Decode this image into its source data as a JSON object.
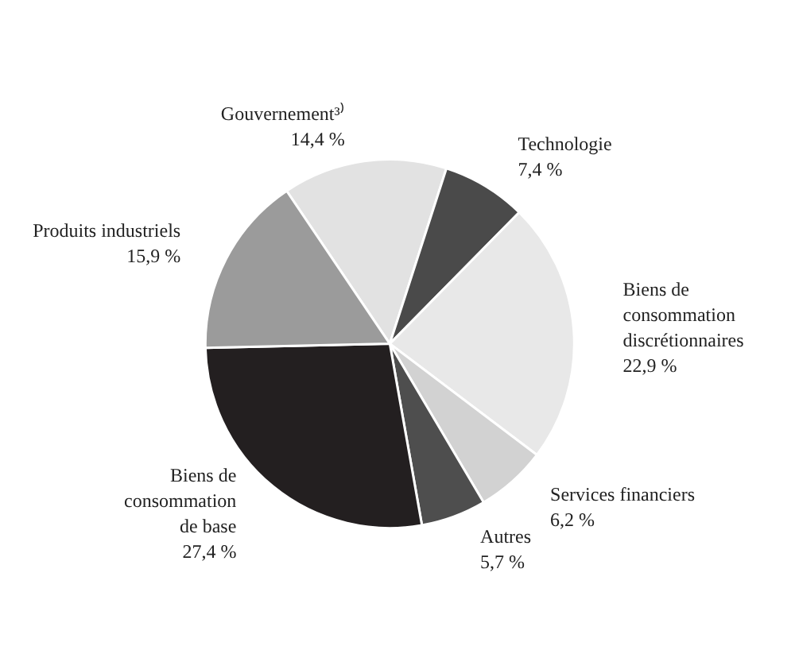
{
  "chart_data": {
    "type": "pie",
    "categories": [
      "Gouvernement³⁾",
      "Technologie",
      "Biens de consommation discrétionnaires",
      "Services financiers",
      "Autres",
      "Biens de consommation de base",
      "Produits industriels"
    ],
    "values": [
      14.4,
      7.4,
      22.9,
      6.2,
      5.7,
      27.4,
      15.9
    ],
    "colors": [
      "#e2e2e2",
      "#4a4a4a",
      "#e8e8e8",
      "#d2d2d2",
      "#4e4e4e",
      "#231f20",
      "#9b9b9b"
    ],
    "value_labels": [
      "14,4 %",
      "7,4 %",
      "22,9 %",
      "6,2 %",
      "5,7 %",
      "27,4 %",
      "15,9 %"
    ],
    "legend": false
  }
}
